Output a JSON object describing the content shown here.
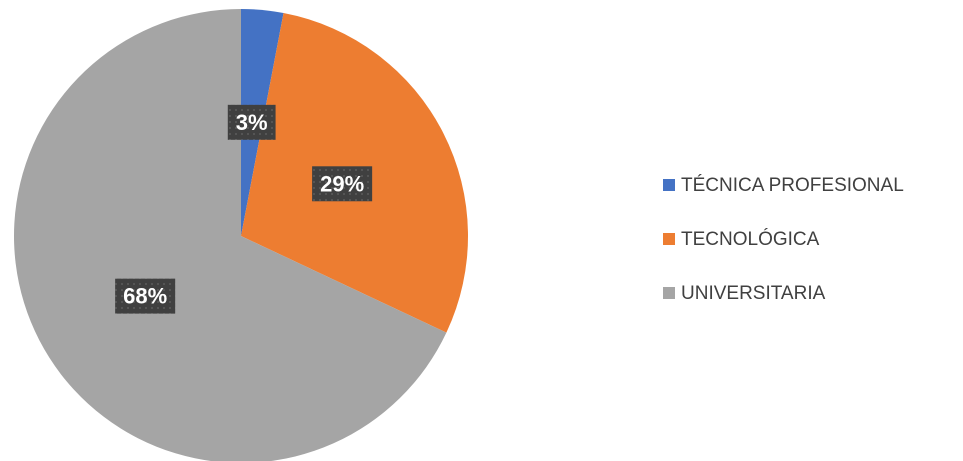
{
  "chart_data": {
    "type": "pie",
    "categories": [
      "TÉCNICA PROFESIONAL",
      "TECNOLÓGICA",
      "UNIVERSITARIA"
    ],
    "values": [
      3,
      29,
      68
    ],
    "value_labels": [
      "3%",
      "29%",
      "68%"
    ],
    "colors": [
      "#4472c4",
      "#ed7d31",
      "#a5a5a5"
    ],
    "legend": "right"
  }
}
